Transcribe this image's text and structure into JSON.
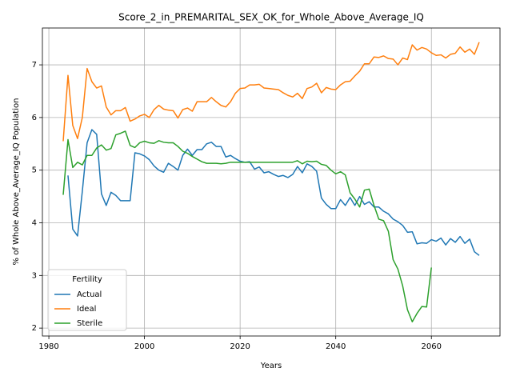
{
  "chart_data": {
    "type": "line",
    "title": "Score_2_in_PREMARITAL_SEX_OK_for_Whole_Above_Average_IQ",
    "xlabel": "Years",
    "ylabel": "% of Whole Above_Average_IQ Population",
    "legend_title": "Fertility",
    "legend": "lower left",
    "grid": true,
    "x": [
      1983,
      1984,
      1985,
      1986,
      1987,
      1988,
      1989,
      1990,
      1991,
      1992,
      1993,
      1994,
      1995,
      1996,
      1997,
      1998,
      1999,
      2000,
      2001,
      2002,
      2003,
      2004,
      2005,
      2006,
      2007,
      2008,
      2009,
      2010,
      2011,
      2012,
      2013,
      2014,
      2015,
      2016,
      2017,
      2018,
      2019,
      2020,
      2021,
      2022,
      2023,
      2024,
      2025,
      2026,
      2027,
      2028,
      2029,
      2030,
      2031,
      2032,
      2033,
      2034,
      2035,
      2036,
      2037,
      2038,
      2039,
      2040,
      2041,
      2042,
      2043,
      2044,
      2045,
      2046,
      2047,
      2048,
      2049,
      2050,
      2051,
      2052,
      2053,
      2054,
      2055,
      2056,
      2057,
      2058,
      2059,
      2060,
      2061,
      2062,
      2063,
      2064,
      2065,
      2066,
      2067,
      2068,
      2069,
      2070
    ],
    "series": [
      {
        "name": "Actual",
        "color": "#1f77b4",
        "values": [
          null,
          4.9,
          3.88,
          3.75,
          4.6,
          5.52,
          5.77,
          5.68,
          4.55,
          4.33,
          4.58,
          4.52,
          4.42,
          4.42,
          4.42,
          5.33,
          5.31,
          5.27,
          5.2,
          5.08,
          5.0,
          4.96,
          5.13,
          5.07,
          5.0,
          5.28,
          5.4,
          5.28,
          5.39,
          5.39,
          5.5,
          5.53,
          5.45,
          5.45,
          5.25,
          5.28,
          5.22,
          5.17,
          5.15,
          5.16,
          5.02,
          5.06,
          4.95,
          4.97,
          4.92,
          4.88,
          4.9,
          4.86,
          4.92,
          5.07,
          4.95,
          5.12,
          5.07,
          4.98,
          4.47,
          4.35,
          4.27,
          4.27,
          4.44,
          4.33,
          4.48,
          4.33,
          4.5,
          4.35,
          4.4,
          4.3,
          4.3,
          4.22,
          4.17,
          4.07,
          4.02,
          3.95,
          3.82,
          3.83,
          3.6,
          3.62,
          3.61,
          3.68,
          3.65,
          3.71,
          3.58,
          3.7,
          3.63,
          3.74,
          3.61,
          3.69,
          3.45,
          3.38
        ]
      },
      {
        "name": "Ideal",
        "color": "#ff7f0e",
        "values": [
          5.55,
          6.8,
          5.85,
          5.6,
          6.0,
          6.93,
          6.68,
          6.56,
          6.6,
          6.2,
          6.05,
          6.13,
          6.13,
          6.19,
          5.93,
          5.97,
          6.03,
          6.06,
          6.0,
          6.15,
          6.23,
          6.16,
          6.14,
          6.13,
          5.99,
          6.15,
          6.18,
          6.12,
          6.3,
          6.3,
          6.3,
          6.38,
          6.3,
          6.23,
          6.2,
          6.3,
          6.46,
          6.55,
          6.56,
          6.62,
          6.62,
          6.63,
          6.56,
          6.55,
          6.54,
          6.53,
          6.47,
          6.42,
          6.39,
          6.46,
          6.36,
          6.55,
          6.58,
          6.65,
          6.47,
          6.57,
          6.54,
          6.53,
          6.62,
          6.68,
          6.69,
          6.79,
          6.88,
          7.02,
          7.02,
          7.15,
          7.14,
          7.17,
          7.12,
          7.11,
          7.0,
          7.13,
          7.1,
          7.38,
          7.28,
          7.33,
          7.3,
          7.23,
          7.18,
          7.19,
          7.13,
          7.2,
          7.22,
          7.34,
          7.24,
          7.3,
          7.2,
          7.43
        ]
      },
      {
        "name": "Sterile",
        "color": "#2ca02c",
        "values": [
          4.53,
          5.58,
          5.05,
          5.15,
          5.1,
          5.28,
          5.28,
          5.42,
          5.48,
          5.38,
          5.41,
          5.67,
          5.7,
          5.74,
          5.47,
          5.43,
          5.52,
          5.55,
          5.52,
          5.51,
          5.56,
          5.53,
          5.52,
          5.52,
          5.45,
          5.36,
          5.32,
          5.26,
          5.21,
          5.16,
          5.13,
          5.13,
          5.13,
          5.12,
          5.13,
          5.15,
          5.15,
          5.15,
          5.15,
          5.15,
          5.15,
          5.15,
          5.15,
          5.15,
          5.15,
          5.15,
          5.15,
          5.15,
          5.15,
          5.18,
          5.12,
          5.17,
          5.16,
          5.17,
          5.11,
          5.09,
          5.0,
          4.93,
          4.97,
          4.91,
          4.57,
          4.45,
          4.3,
          4.62,
          4.64,
          4.33,
          4.07,
          4.04,
          3.84,
          3.3,
          3.12,
          2.8,
          2.35,
          2.12,
          2.28,
          2.41,
          2.4,
          3.15,
          null,
          null,
          null,
          null,
          null,
          null,
          null,
          null,
          null,
          null
        ]
      }
    ],
    "xlim": [
      1978.65,
      2074.35
    ],
    "xticks": [
      1980,
      2000,
      2020,
      2040,
      2060
    ],
    "ylim": [
      1.85,
      7.7
    ],
    "yticks": [
      2,
      3,
      4,
      5,
      6,
      7
    ]
  }
}
